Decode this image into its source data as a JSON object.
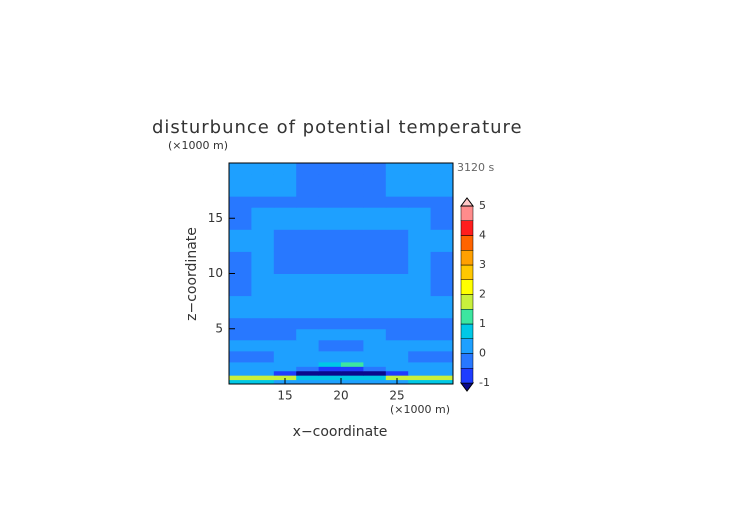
{
  "chart_data": {
    "type": "contour",
    "title": "disturbunce of potential temperature",
    "x_label": "x−coordinate",
    "y_label": "z−coordinate",
    "x_unit": "(×1000 m)",
    "y_unit": "(×1000 m)",
    "time_label": "3120 s",
    "xlim": [
      10,
      30
    ],
    "ylim": [
      0,
      20
    ],
    "xticks": [
      15,
      20,
      25
    ],
    "yticks": [
      5,
      10,
      15
    ],
    "x_edges": [
      10,
      12,
      14,
      16,
      18,
      20,
      22,
      24,
      26,
      28,
      30
    ],
    "z_edges": [
      0,
      0.4,
      0.8,
      1.2,
      1.6,
      2,
      3,
      4,
      5,
      6,
      8,
      10,
      12,
      14,
      16,
      17,
      18,
      19,
      20
    ],
    "field": [
      [
        0.8,
        0.8,
        0.3,
        0.2,
        0.2,
        0.2,
        0.2,
        0.3,
        0.8,
        0.8
      ],
      [
        1.8,
        1.8,
        1.6,
        0.8,
        0.5,
        0.5,
        0.8,
        1.6,
        1.8,
        1.8
      ],
      [
        0.3,
        0.2,
        -0.6,
        -1.2,
        -1.3,
        -1.3,
        -1.2,
        -0.6,
        0.2,
        0.3
      ],
      [
        0.2,
        0.2,
        0.1,
        -0.3,
        -0.6,
        -0.6,
        -0.3,
        0.1,
        0.2,
        0.2
      ],
      [
        0.2,
        0.2,
        0.2,
        0.3,
        0.6,
        1.1,
        0.3,
        0.2,
        0.2,
        0.2
      ],
      [
        -0.2,
        -0.2,
        0.2,
        0.2,
        0.2,
        0.2,
        0.2,
        0.2,
        -0.2,
        -0.2
      ],
      [
        0.2,
        0.2,
        0.2,
        0.2,
        -0.2,
        -0.2,
        0.2,
        0.2,
        0.2,
        0.2
      ],
      [
        -0.2,
        -0.2,
        -0.2,
        0.2,
        0.2,
        0.2,
        0.2,
        -0.2,
        -0.2,
        -0.2
      ],
      [
        -0.2,
        -0.2,
        -0.2,
        -0.2,
        -0.2,
        -0.2,
        -0.2,
        -0.2,
        -0.2,
        -0.2
      ],
      [
        0.2,
        0.2,
        0.2,
        0.2,
        0.2,
        0.2,
        0.2,
        0.2,
        0.2,
        0.2
      ],
      [
        -0.2,
        0.2,
        0.2,
        0.2,
        0.2,
        0.2,
        0.2,
        0.2,
        0.2,
        -0.2
      ],
      [
        -0.2,
        0.2,
        -0.2,
        -0.2,
        -0.2,
        -0.2,
        -0.2,
        -0.2,
        0.2,
        -0.2
      ],
      [
        0.2,
        0.2,
        -0.2,
        -0.2,
        -0.2,
        -0.2,
        -0.2,
        -0.2,
        0.2,
        0.2
      ],
      [
        -0.2,
        0.2,
        0.2,
        0.2,
        0.2,
        0.2,
        0.2,
        0.2,
        0.2,
        -0.2
      ],
      [
        -0.2,
        -0.2,
        -0.2,
        -0.2,
        -0.2,
        -0.2,
        -0.2,
        -0.2,
        -0.2,
        -0.2
      ],
      [
        0.2,
        0.2,
        0.2,
        -0.2,
        -0.2,
        -0.2,
        -0.2,
        0.2,
        0.2,
        0.2
      ],
      [
        0.2,
        0.2,
        0.2,
        -0.2,
        -0.2,
        -0.2,
        -0.2,
        0.2,
        0.2,
        0.2
      ],
      [
        0.2,
        0.2,
        0.2,
        -0.2,
        -0.2,
        -0.2,
        -0.2,
        0.2,
        0.2,
        0.2
      ]
    ],
    "levels": [
      -1,
      -0.5,
      0,
      0.5,
      1,
      1.5,
      2,
      2.5,
      3,
      3.5,
      4,
      4.5,
      5
    ],
    "colors": [
      "#0a0a8c",
      "#1e3cff",
      "#2878ff",
      "#1ea0ff",
      "#00c8e6",
      "#3ce6a0",
      "#c8f03c",
      "#ffff00",
      "#ffc800",
      "#ffa000",
      "#ff6400",
      "#ff1e1e",
      "#ff8c8c",
      "#ffc8c8"
    ],
    "cbar_ticks": [
      -1,
      0,
      1,
      2,
      3,
      4,
      5
    ]
  }
}
